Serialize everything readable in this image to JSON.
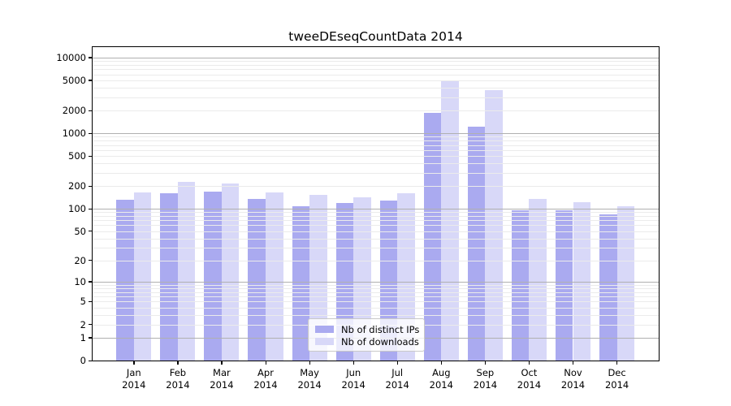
{
  "title": "tweeDEseqCountData 2014",
  "colors": {
    "ips_bar": "#aaaaf0",
    "downloads_bar": "#d8d8f8",
    "grid_major": "#b0b0b0",
    "grid_minor": "#ebebeb",
    "axis": "#000000",
    "legend_border": "#c9c9c9"
  },
  "legend": {
    "items": [
      {
        "label": "Nb of distinct IPs",
        "color": "#aaaaf0"
      },
      {
        "label": "Nb of downloads",
        "color": "#d8d8f8"
      }
    ]
  },
  "chart_data": {
    "type": "bar",
    "title": "tweeDEseqCountData 2014",
    "y_scale": "log10(1+x)",
    "grid": true,
    "legend_position": "inside bottom-center",
    "categories": [
      "Jan 2014",
      "Feb 2014",
      "Mar 2014",
      "Apr 2014",
      "May 2014",
      "Jun 2014",
      "Jul 2014",
      "Aug 2014",
      "Sep 2014",
      "Oct 2014",
      "Nov 2014",
      "Dec 2014"
    ],
    "x_tick_months": [
      "Jan",
      "Feb",
      "Mar",
      "Apr",
      "May",
      "Jun",
      "Jul",
      "Aug",
      "Sep",
      "Oct",
      "Nov",
      "Dec"
    ],
    "x_tick_year": "2014",
    "series": [
      {
        "name": "Nb of distinct IPs",
        "values": [
          132,
          160,
          169,
          135,
          108,
          119,
          129,
          1870,
          1230,
          95,
          95,
          85
        ]
      },
      {
        "name": "Nb of downloads",
        "values": [
          165,
          228,
          218,
          163,
          153,
          143,
          159,
          5000,
          3700,
          136,
          122,
          107
        ]
      }
    ],
    "y_ticks": [
      10000,
      5000,
      2000,
      1000,
      500,
      200,
      100,
      50,
      20,
      10,
      5,
      2,
      1,
      0
    ],
    "ylim": [
      0,
      14000
    ],
    "xlabel": "",
    "ylabel": ""
  }
}
